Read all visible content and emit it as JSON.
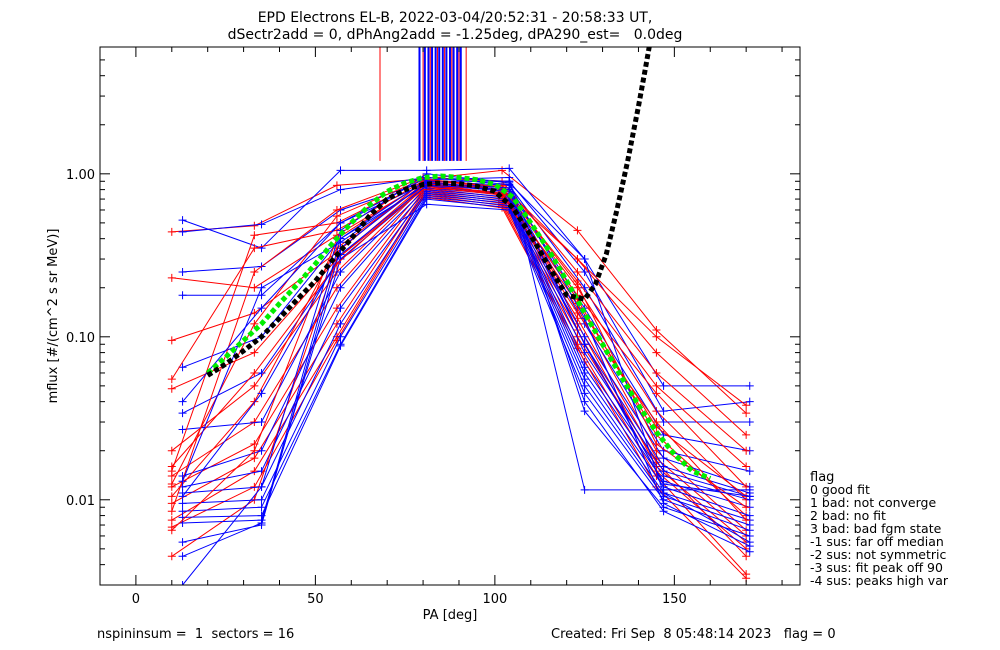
{
  "chart_data": {
    "type": "line",
    "title": "EPD Electrons EL-B, 2022-03-04/20:52:31 - 20:58:33 UT,",
    "subtitle": "dSectr2add = 0, dPhAng2add = -1.25deg, dPA290_est=   0.0deg",
    "xlabel": "PA [deg]",
    "ylabel": "mflux [#/(cm^2 s sr MeV)]",
    "xlim": [
      -10,
      185
    ],
    "ylim": [
      0.003,
      6.0
    ],
    "yscale": "log",
    "grid": false,
    "xticks": [
      0,
      50,
      100,
      150
    ],
    "xtick_labels": [
      "0",
      "50",
      "100",
      "150"
    ],
    "yticks": [
      0.01,
      0.1,
      1.0
    ],
    "ytick_labels": [
      "0.01",
      "0.10",
      "1.00"
    ],
    "legend_placement": "right-outside",
    "legend_title": "flag",
    "legend": [
      " 0 good fit",
      " 1 bad: not converge",
      " 2 bad: no fit",
      " 3 bad: bad fgm state",
      "-1 sus: far off median",
      "-2 sus: not symmetric",
      "-3 sus: fit peak off 90",
      "-4 sus: peaks high var"
    ],
    "colors": {
      "red": "#ff0000",
      "blue": "#0000ff",
      "green": "#00ee00",
      "black": "#000000"
    },
    "red_curves": [
      {
        "x": [
          10,
          33,
          56,
          80,
          102,
          123,
          145,
          170
        ],
        "y": [
          0.44,
          0.48,
          0.85,
          0.93,
          1.05,
          0.45,
          0.11,
          0.034
        ]
      },
      {
        "x": [
          10,
          33,
          56,
          80,
          102,
          123,
          145,
          170
        ],
        "y": [
          0.23,
          0.2,
          0.42,
          0.87,
          0.8,
          0.2,
          0.035,
          0.01
        ]
      },
      {
        "x": [
          10,
          33,
          56,
          80,
          102,
          123,
          145,
          170
        ],
        "y": [
          0.095,
          0.14,
          0.33,
          0.9,
          0.78,
          0.17,
          0.025,
          0.008
        ]
      },
      {
        "x": [
          10,
          33,
          56,
          80,
          102,
          123,
          145,
          170
        ],
        "y": [
          0.048,
          0.08,
          0.3,
          0.85,
          0.75,
          0.15,
          0.02,
          0.0065
        ]
      },
      {
        "x": [
          10,
          33,
          56,
          80,
          102,
          123,
          145,
          170
        ],
        "y": [
          0.02,
          0.05,
          0.25,
          0.82,
          0.72,
          0.13,
          0.018,
          0.006
        ]
      },
      {
        "x": [
          10,
          33,
          56,
          80,
          102,
          123,
          145,
          170
        ],
        "y": [
          0.014,
          0.03,
          0.2,
          0.8,
          0.7,
          0.12,
          0.016,
          0.0055
        ]
      },
      {
        "x": [
          10,
          33,
          56,
          80,
          102,
          123,
          145,
          170
        ],
        "y": [
          0.012,
          0.022,
          0.15,
          0.78,
          0.68,
          0.11,
          0.015,
          0.005
        ]
      },
      {
        "x": [
          10,
          33,
          56,
          80,
          102,
          123,
          145,
          170
        ],
        "y": [
          0.0095,
          0.018,
          0.12,
          0.76,
          0.66,
          0.1,
          0.017,
          0.0045
        ]
      },
      {
        "x": [
          10,
          33,
          56,
          80,
          102,
          123,
          145,
          170
        ],
        "y": [
          0.0075,
          0.015,
          0.1,
          0.74,
          0.64,
          0.09,
          0.014,
          0.0035
        ]
      },
      {
        "x": [
          10,
          33,
          56,
          80,
          102,
          123,
          145,
          170
        ],
        "y": [
          0.0068,
          0.012,
          0.095,
          0.72,
          0.62,
          0.085,
          0.012,
          0.0033
        ]
      },
      {
        "x": [
          10,
          33,
          56,
          80,
          102,
          123,
          145,
          170
        ],
        "y": [
          0.0045,
          0.01,
          0.3,
          0.8,
          0.85,
          0.3,
          0.1,
          0.038
        ]
      },
      {
        "x": [
          10,
          33,
          56,
          80,
          102,
          123,
          145,
          170
        ],
        "y": [
          0.0085,
          0.25,
          0.6,
          0.95,
          0.9,
          0.25,
          0.06,
          0.02
        ]
      },
      {
        "x": [
          10,
          33,
          56,
          80,
          102,
          123,
          145,
          170
        ],
        "y": [
          0.015,
          0.42,
          0.5,
          0.92,
          0.82,
          0.22,
          0.05,
          0.016
        ]
      },
      {
        "x": [
          10,
          33,
          56,
          80,
          102,
          123,
          145,
          170
        ],
        "y": [
          0.055,
          0.35,
          0.45,
          0.9,
          0.8,
          0.3,
          0.08,
          0.025
        ]
      },
      {
        "x": [
          10,
          33,
          56,
          80,
          102,
          123,
          145,
          170
        ],
        "y": [
          0.0065,
          0.02,
          0.4,
          0.88,
          0.75,
          0.14,
          0.03,
          0.0075
        ]
      },
      {
        "x": [
          10,
          33,
          56,
          80,
          102,
          123,
          145,
          170
        ],
        "y": [
          0.0105,
          0.04,
          0.35,
          0.86,
          0.76,
          0.18,
          0.045,
          0.012
        ]
      },
      {
        "x": [
          10,
          33,
          56,
          80,
          102,
          123,
          145,
          170
        ],
        "y": [
          0.0125,
          0.12,
          0.55,
          0.93,
          0.83,
          0.21,
          0.022,
          0.009
        ]
      },
      {
        "x": [
          10,
          33,
          56,
          80,
          102,
          123,
          145,
          170
        ],
        "y": [
          0.016,
          0.06,
          0.28,
          0.84,
          0.74,
          0.16,
          0.028,
          0.0105
        ]
      }
    ],
    "blue_curves": [
      {
        "x": [
          13,
          35,
          57,
          81,
          104,
          125,
          147,
          171
        ],
        "y": [
          0.52,
          0.35,
          1.05,
          1.05,
          1.08,
          0.3,
          0.05,
          0.05
        ]
      },
      {
        "x": [
          13,
          35,
          57,
          81,
          104,
          125,
          147,
          171
        ],
        "y": [
          0.44,
          0.49,
          0.8,
          0.95,
          0.9,
          0.25,
          0.035,
          0.04
        ]
      },
      {
        "x": [
          13,
          35,
          57,
          81,
          104,
          125,
          147,
          171
        ],
        "y": [
          0.25,
          0.27,
          0.6,
          0.9,
          0.85,
          0.2,
          0.03,
          0.03
        ]
      },
      {
        "x": [
          13,
          35,
          57,
          81,
          104,
          125,
          147,
          171
        ],
        "y": [
          0.18,
          0.18,
          0.5,
          0.88,
          0.8,
          0.15,
          0.025,
          0.02
        ]
      },
      {
        "x": [
          13,
          35,
          57,
          81,
          104,
          125,
          147,
          171
        ],
        "y": [
          0.065,
          0.1,
          0.4,
          0.86,
          0.78,
          0.12,
          0.02,
          0.015
        ]
      },
      {
        "x": [
          13,
          35,
          57,
          81,
          104,
          125,
          147,
          171
        ],
        "y": [
          0.034,
          0.06,
          0.3,
          0.84,
          0.76,
          0.1,
          0.018,
          0.012
        ]
      },
      {
        "x": [
          13,
          35,
          57,
          81,
          104,
          125,
          147,
          171
        ],
        "y": [
          0.027,
          0.03,
          0.25,
          0.82,
          0.74,
          0.09,
          0.016,
          0.011
        ]
      },
      {
        "x": [
          13,
          35,
          57,
          81,
          104,
          125,
          147,
          171
        ],
        "y": [
          0.014,
          0.02,
          0.2,
          0.8,
          0.72,
          0.08,
          0.015,
          0.0105
        ]
      },
      {
        "x": [
          13,
          35,
          57,
          81,
          104,
          125,
          147,
          171
        ],
        "y": [
          0.012,
          0.015,
          0.15,
          0.78,
          0.7,
          0.07,
          0.014,
          0.01
        ]
      },
      {
        "x": [
          13,
          35,
          57,
          81,
          104,
          125,
          147,
          171
        ],
        "y": [
          0.011,
          0.012,
          0.12,
          0.76,
          0.68,
          0.065,
          0.013,
          0.009
        ]
      },
      {
        "x": [
          13,
          35,
          57,
          81,
          104,
          125,
          147,
          171
        ],
        "y": [
          0.0095,
          0.01,
          0.1,
          0.74,
          0.66,
          0.06,
          0.012,
          0.008
        ]
      },
      {
        "x": [
          13,
          35,
          57,
          81,
          104,
          125,
          147,
          171
        ],
        "y": [
          0.0085,
          0.009,
          0.09,
          0.72,
          0.64,
          0.055,
          0.011,
          0.0075
        ]
      },
      {
        "x": [
          13,
          35,
          57,
          81,
          104,
          125,
          147,
          171
        ],
        "y": [
          0.0078,
          0.008,
          0.088,
          0.7,
          0.62,
          0.05,
          0.0105,
          0.007
        ]
      },
      {
        "x": [
          13,
          35,
          57,
          81,
          104,
          125,
          147,
          171
        ],
        "y": [
          0.0072,
          0.0075,
          0.3,
          0.65,
          0.6,
          0.045,
          0.01,
          0.0065
        ]
      },
      {
        "x": [
          13,
          35,
          57,
          81,
          104,
          125,
          147,
          171
        ],
        "y": [
          0.0055,
          0.007,
          0.35,
          0.9,
          0.9,
          0.035,
          0.009,
          0.006
        ]
      },
      {
        "x": [
          13,
          35,
          57,
          81,
          104,
          125,
          147,
          171
        ],
        "y": [
          0.0045,
          0.0072,
          0.4,
          0.92,
          0.95,
          0.0115,
          0.0115,
          0.0115
        ]
      },
      {
        "x": [
          13,
          35,
          57,
          81,
          104,
          125,
          147,
          171
        ],
        "y": [
          0.003,
          0.012,
          0.45,
          1.0,
          0.88,
          0.3,
          0.011,
          0.0055
        ]
      },
      {
        "x": [
          13,
          35,
          57,
          81,
          104,
          125,
          147,
          171
        ],
        "y": [
          0.04,
          0.15,
          0.5,
          0.95,
          0.86,
          0.13,
          0.0095,
          0.0052
        ]
      },
      {
        "x": [
          13,
          35,
          57,
          81,
          104,
          125,
          147,
          171
        ],
        "y": [
          0.0105,
          0.045,
          0.32,
          0.85,
          0.8,
          0.04,
          0.0085,
          0.0048
        ]
      },
      {
        "x": [
          13,
          35,
          57,
          81,
          104,
          125,
          147,
          171
        ],
        "y": [
          0.013,
          0.2,
          0.38,
          0.88,
          0.82,
          0.09,
          0.0125,
          0.0105
        ]
      }
    ],
    "green_fit": {
      "x": [
        20,
        25,
        30,
        35,
        40,
        45,
        50,
        55,
        60,
        65,
        70,
        75,
        80,
        85,
        90,
        95,
        100,
        105,
        110,
        115,
        120,
        125,
        130,
        135,
        140,
        145,
        150,
        155,
        160
      ],
      "y": [
        0.06,
        0.075,
        0.095,
        0.12,
        0.16,
        0.21,
        0.28,
        0.38,
        0.5,
        0.64,
        0.78,
        0.88,
        0.95,
        0.97,
        0.95,
        0.92,
        0.86,
        0.72,
        0.5,
        0.34,
        0.22,
        0.14,
        0.09,
        0.058,
        0.038,
        0.026,
        0.019,
        0.015,
        0.0135
      ]
    },
    "black_fit": {
      "x": [
        20,
        25,
        30,
        35,
        40,
        45,
        50,
        55,
        60,
        65,
        70,
        75,
        80,
        85,
        90,
        95,
        100,
        105,
        110,
        115,
        120,
        125,
        128,
        131,
        134,
        137,
        140,
        142,
        143
      ],
      "y": [
        0.058,
        0.068,
        0.082,
        0.1,
        0.13,
        0.17,
        0.22,
        0.3,
        0.4,
        0.55,
        0.7,
        0.8,
        0.86,
        0.88,
        0.87,
        0.84,
        0.78,
        0.62,
        0.42,
        0.27,
        0.18,
        0.17,
        0.21,
        0.32,
        0.6,
        1.2,
        2.6,
        4.5,
        6.0
      ]
    },
    "red_vlines": [
      68,
      79,
      80,
      82,
      84,
      86,
      88,
      90,
      92
    ],
    "blue_vlines": [
      79,
      80.5,
      81.5,
      82.5,
      83.5,
      84.5,
      85.5,
      86.5,
      87.5,
      88.5,
      89.5,
      90.5
    ],
    "vline_top": 6.0,
    "vline_bottom": 1.2
  },
  "footer": {
    "left": "nspininsum =  1  sectors = 16",
    "right": "Created: Fri Sep  8 05:48:14 2023   flag = 0"
  }
}
